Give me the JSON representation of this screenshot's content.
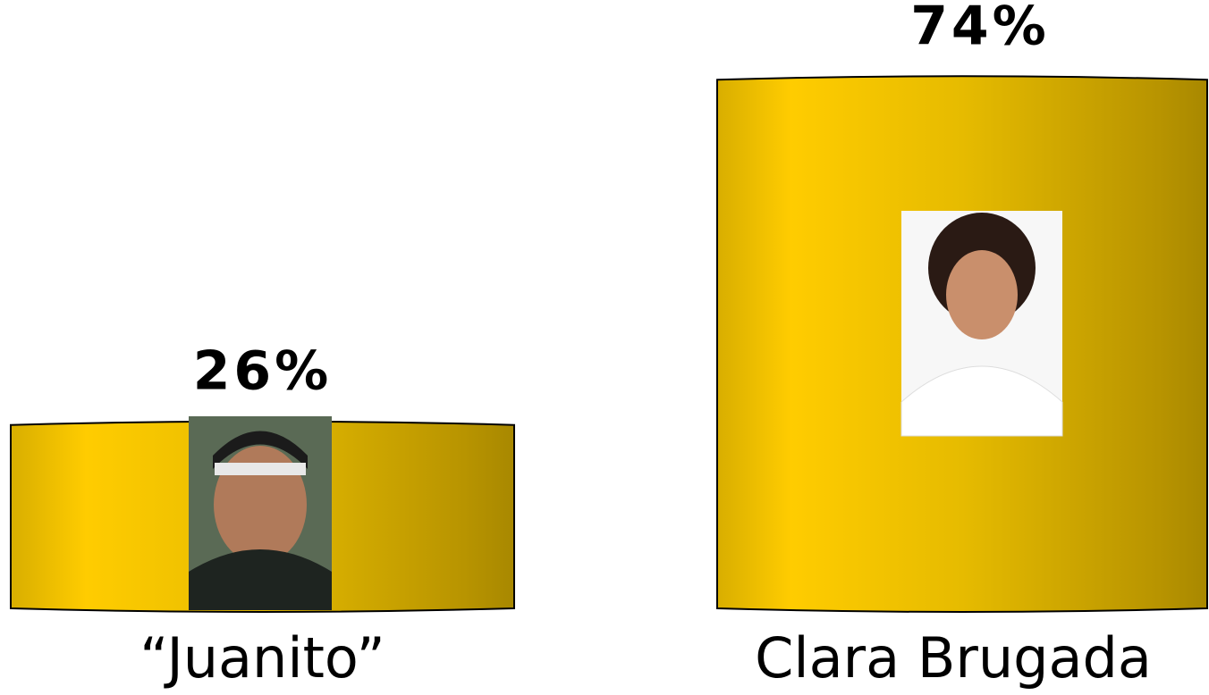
{
  "chart_data": {
    "type": "bar",
    "categories": [
      "“Juanito”",
      "Clara Brugada"
    ],
    "values": [
      26,
      74
    ],
    "value_labels": [
      "26%",
      "74%"
    ],
    "color": "#f2c500"
  }
}
